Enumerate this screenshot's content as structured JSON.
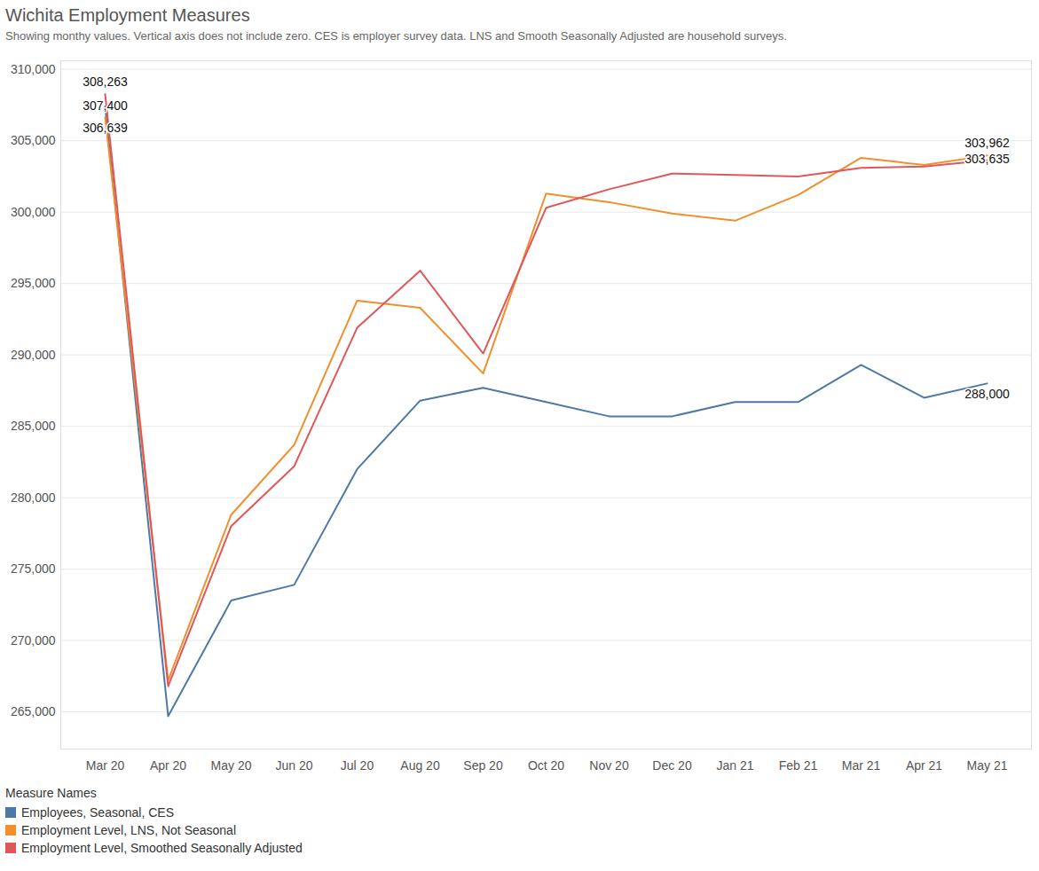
{
  "chart_data": {
    "type": "line",
    "title": "Wichita Employment Measures",
    "subtitle": "Showing monthy values. Vertical axis does not include zero. CES is employer survey data. LNS and Smooth Seasonally Adjusted are household surveys.",
    "categories": [
      "Mar 20",
      "Apr 20",
      "May 20",
      "Jun 20",
      "Jul 20",
      "Aug 20",
      "Sep 20",
      "Oct 20",
      "Nov 20",
      "Dec 20",
      "Jan 21",
      "Feb 21",
      "Mar 21",
      "Apr 21",
      "May 21"
    ],
    "series": [
      {
        "name": "Employees, Seasonal, CES",
        "color": "#4e79a7",
        "values": [
          307400,
          264700,
          272800,
          273900,
          282000,
          286800,
          287700,
          286700,
          285700,
          285700,
          286700,
          286700,
          289300,
          287000,
          288000
        ],
        "value_labels": [
          "307,400",
          null,
          null,
          null,
          null,
          null,
          null,
          null,
          null,
          null,
          null,
          null,
          null,
          null,
          "288,000"
        ]
      },
      {
        "name": "Employment Level, LNS, Not Seasonal",
        "color": "#f28e2b",
        "values": [
          306639,
          267200,
          278800,
          283700,
          293800,
          293300,
          288700,
          301300,
          300700,
          299900,
          299400,
          301200,
          303800,
          303300,
          303962
        ],
        "value_labels": [
          "306,639",
          null,
          null,
          null,
          null,
          null,
          null,
          null,
          null,
          null,
          null,
          null,
          null,
          null,
          "303,962"
        ]
      },
      {
        "name": "Employment Level, Smoothed Seasonally Adjusted",
        "color": "#e15759",
        "values": [
          308263,
          266800,
          278000,
          282200,
          291900,
          295900,
          290100,
          300300,
          301600,
          302700,
          302600,
          302500,
          303100,
          303200,
          303635
        ],
        "value_labels": [
          "308,263",
          null,
          null,
          null,
          null,
          null,
          null,
          null,
          null,
          null,
          null,
          null,
          null,
          null,
          "303,635"
        ]
      }
    ],
    "ylim": [
      262400,
      310600
    ],
    "yticks": [
      {
        "value": 265000,
        "label": "265,000"
      },
      {
        "value": 270000,
        "label": "270,000"
      },
      {
        "value": 275000,
        "label": "275,000"
      },
      {
        "value": 280000,
        "label": "280,000"
      },
      {
        "value": 285000,
        "label": "285,000"
      },
      {
        "value": 290000,
        "label": "290,000"
      },
      {
        "value": 295000,
        "label": "295,000"
      },
      {
        "value": 300000,
        "label": "300,000"
      },
      {
        "value": 305000,
        "label": "305,000"
      },
      {
        "value": 310000,
        "label": "310,000"
      }
    ],
    "grid": true,
    "data_labels": true,
    "legend": "bottom-left",
    "legend_title": "Measure Names"
  }
}
